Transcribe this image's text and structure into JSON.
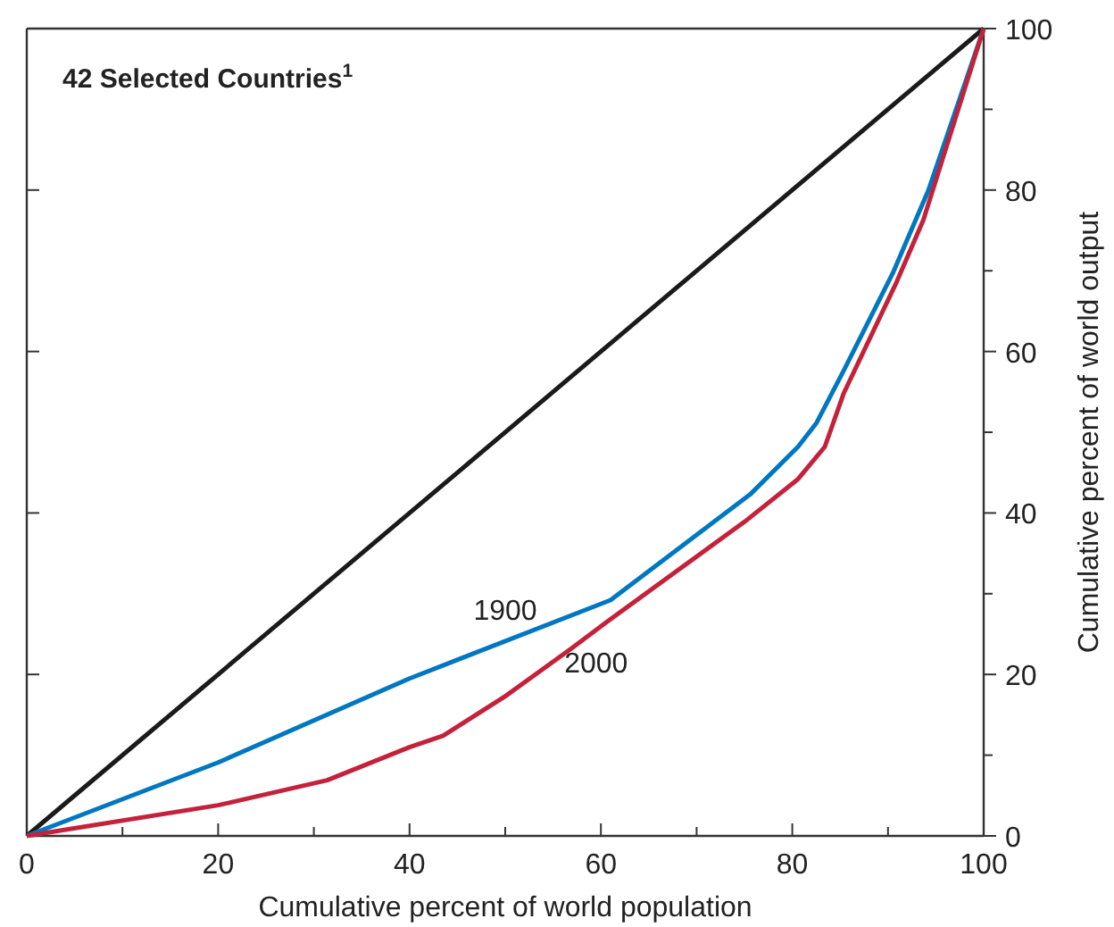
{
  "chart_data": {
    "type": "line",
    "title": "42 Selected Countries$^{1}$",
    "xlabel": "Cumulative percent of world population",
    "ylabel": "Cumulative percent of world output",
    "xlim": [
      0,
      100
    ],
    "xticks": [
      0,
      {
        "value": 10,
        "label": null
      },
      20,
      {
        "value": 30,
        "label": null
      },
      40,
      {
        "value": 50,
        "label": null
      },
      60,
      {
        "value": 70,
        "label": null
      },
      80,
      {
        "value": 90,
        "label": null
      },
      100
    ],
    "ylim": [
      0,
      100
    ],
    "yticks": [
      0,
      {
        "value": 10,
        "label": null
      },
      20,
      {
        "value": 30,
        "label": null
      },
      40,
      {
        "value": 50,
        "label": null
      },
      60,
      {
        "value": 70,
        "label": null
      },
      80,
      {
        "value": 90,
        "label": null
      },
      100
    ],
    "grid": false,
    "marker": "none",
    "line_style": "solid",
    "series": [
      {
        "color": "#1a1a1a",
        "x": [
          0,
          100
        ],
        "values": [
          0,
          100
        ]
      },
      {
        "name": "1900",
        "color": "#0077c0",
        "x": [
          0,
          20,
          40,
          61,
          75.6,
          80.6,
          82.5,
          85.4,
          90.5,
          94.2,
          100
        ],
        "values": [
          0,
          9.1,
          19.5,
          29.2,
          42.3,
          48.2,
          51.1,
          57.7,
          69.7,
          79.9,
          100
        ]
      },
      {
        "name": "2000",
        "color": "#c4213a",
        "x": [
          0,
          20,
          31.4,
          40,
          43.5,
          50,
          56.9,
          60.6,
          75,
          80.6,
          83.4,
          85.4,
          90.9,
          93.7,
          100
        ],
        "values": [
          0,
          3.8,
          6.9,
          11,
          12.4,
          17.3,
          23.2,
          26.5,
          38.9,
          44.2,
          48.2,
          54.9,
          68.6,
          76.3,
          100
        ]
      }
    ]
  }
}
